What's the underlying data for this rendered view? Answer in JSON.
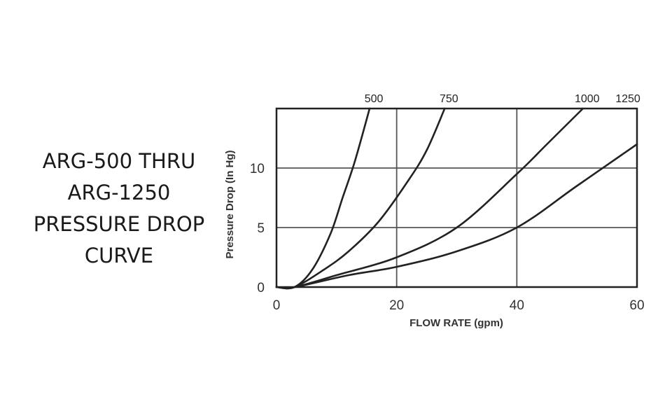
{
  "title_lines": [
    "ARG-500 THRU",
    "ARG-1250",
    "PRESSURE DROP",
    "CURVE"
  ],
  "colors": {
    "line": "#222222",
    "grid": "#555555",
    "text": "#333333"
  },
  "chart_data": {
    "type": "line",
    "xlabel": "FLOW RATE (gpm)",
    "ylabel": "Pressure Drop (In Hg)",
    "xlim": [
      0,
      60
    ],
    "ylim": [
      0,
      15
    ],
    "xticks": [
      0,
      20,
      40,
      60
    ],
    "yticks": [
      0,
      5,
      10
    ],
    "grid": true,
    "series": [
      {
        "name": "500",
        "x": [
          0,
          3,
          6,
          9,
          11,
          13,
          15.5
        ],
        "y": [
          0,
          0,
          1.5,
          4.5,
          7.5,
          10.5,
          15
        ]
      },
      {
        "name": "750",
        "x": [
          0,
          3,
          8,
          12,
          17,
          22,
          25,
          28
        ],
        "y": [
          0,
          0,
          1.5,
          3,
          5.5,
          9,
          11.5,
          15
        ]
      },
      {
        "name": "1000",
        "x": [
          0,
          3,
          10,
          20,
          30,
          40,
          45,
          51
        ],
        "y": [
          0,
          0,
          1,
          2.5,
          5,
          9.5,
          12,
          15
        ]
      },
      {
        "name": "1250",
        "x": [
          0,
          3,
          12,
          20,
          30,
          40,
          50,
          60
        ],
        "y": [
          0,
          0,
          1,
          1.7,
          3,
          5,
          8.5,
          12
        ]
      }
    ]
  }
}
